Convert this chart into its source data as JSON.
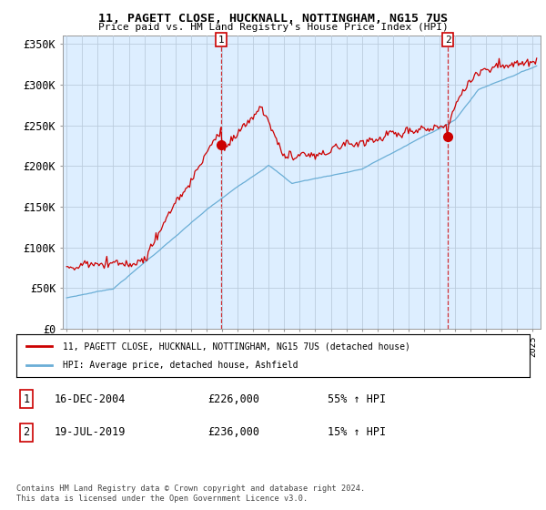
{
  "title": "11, PAGETT CLOSE, HUCKNALL, NOTTINGHAM, NG15 7US",
  "subtitle": "Price paid vs. HM Land Registry's House Price Index (HPI)",
  "ylabel_ticks": [
    "£0",
    "£50K",
    "£100K",
    "£150K",
    "£200K",
    "£250K",
    "£300K",
    "£350K"
  ],
  "ytick_values": [
    0,
    50000,
    100000,
    150000,
    200000,
    250000,
    300000,
    350000
  ],
  "ylim": [
    0,
    360000
  ],
  "xlim_start": 1994.75,
  "xlim_end": 2025.5,
  "sale1_x": 2004.96,
  "sale1_y": 226000,
  "sale1_label": "1",
  "sale1_date": "16-DEC-2004",
  "sale1_price": "£226,000",
  "sale1_hpi": "55% ↑ HPI",
  "sale2_x": 2019.54,
  "sale2_y": 236000,
  "sale2_label": "2",
  "sale2_date": "19-JUL-2019",
  "sale2_price": "£236,000",
  "sale2_hpi": "15% ↑ HPI",
  "legend_entry1": "11, PAGETT CLOSE, HUCKNALL, NOTTINGHAM, NG15 7US (detached house)",
  "legend_entry2": "HPI: Average price, detached house, Ashfield",
  "footnote": "Contains HM Land Registry data © Crown copyright and database right 2024.\nThis data is licensed under the Open Government Licence v3.0.",
  "price_color": "#cc0000",
  "hpi_color": "#6aaed6",
  "bg_plot_color": "#ddeeff",
  "background_color": "#ffffff",
  "grid_color": "#bbccdd"
}
